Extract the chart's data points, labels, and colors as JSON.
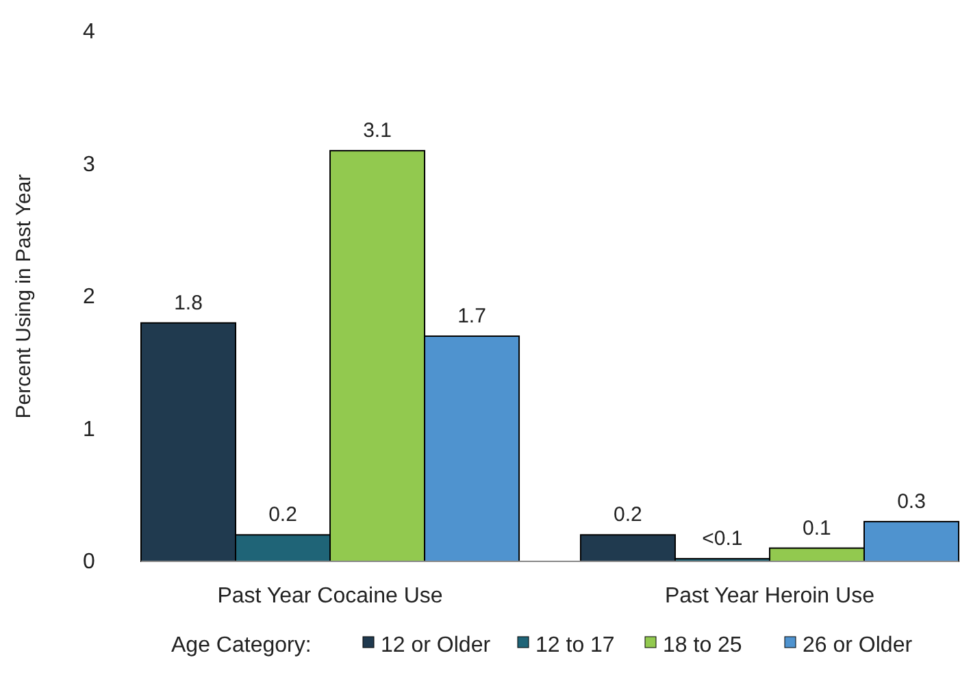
{
  "chart_data": {
    "type": "bar",
    "ylabel": "Percent Using in Past Year",
    "categories": [
      "Past Year Cocaine Use",
      "Past Year Heroin Use"
    ],
    "series": [
      {
        "name": "12 or Older",
        "color": "#203a4f",
        "values": [
          1.8,
          0.2
        ],
        "value_labels": [
          "1.8",
          "0.2"
        ]
      },
      {
        "name": "12 to 17",
        "color": "#1f6477",
        "values": [
          0.2,
          0.02
        ],
        "value_labels": [
          "0.2",
          "<0.1"
        ]
      },
      {
        "name": "18 to 25",
        "color": "#92c94f",
        "values": [
          3.1,
          0.1
        ],
        "value_labels": [
          "3.1",
          "0.1"
        ]
      },
      {
        "name": "26 or Older",
        "color": "#4f93cf",
        "values": [
          1.7,
          0.3
        ],
        "value_labels": [
          "1.7",
          "0.3"
        ]
      }
    ],
    "legend_title": "Age Category:",
    "legend": "bottom",
    "ylim": [
      0,
      4
    ],
    "yticks": [
      0,
      1,
      2,
      3,
      4
    ],
    "grid": false
  }
}
